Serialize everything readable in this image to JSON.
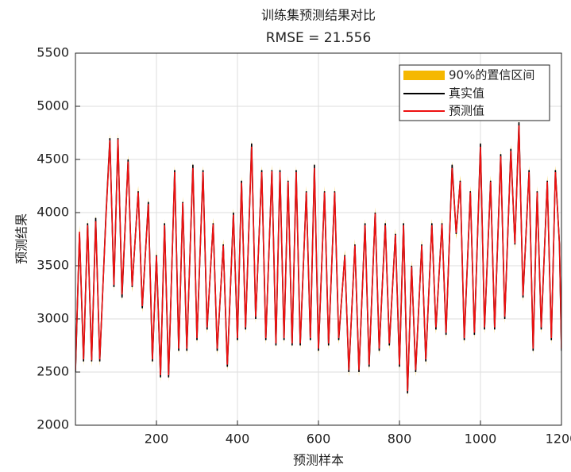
{
  "chart_data": {
    "type": "line",
    "title": "训练集预测结果对比",
    "subtitle": "RMSE = 21.556",
    "xlabel": "预测样本",
    "ylabel": "预测结果",
    "xlim": [
      0,
      1200
    ],
    "xticks": [
      200,
      400,
      600,
      800,
      1000,
      1200
    ],
    "ylim": [
      2000,
      5500
    ],
    "yticks": [
      2000,
      2500,
      3000,
      3500,
      4000,
      4500,
      5000,
      5500
    ],
    "grid": true,
    "legend": "northeast",
    "x": [
      0,
      10,
      20,
      30,
      40,
      50,
      60,
      75,
      85,
      95,
      105,
      115,
      130,
      140,
      155,
      165,
      180,
      190,
      200,
      210,
      220,
      230,
      245,
      255,
      265,
      275,
      290,
      300,
      315,
      325,
      340,
      350,
      365,
      375,
      390,
      400,
      410,
      420,
      435,
      445,
      460,
      470,
      485,
      495,
      505,
      515,
      525,
      535,
      545,
      555,
      570,
      580,
      590,
      600,
      615,
      625,
      640,
      650,
      665,
      675,
      690,
      700,
      715,
      725,
      740,
      750,
      765,
      775,
      790,
      800,
      810,
      820,
      830,
      840,
      855,
      865,
      880,
      890,
      905,
      915,
      930,
      940,
      950,
      960,
      975,
      985,
      1000,
      1010,
      1025,
      1035,
      1050,
      1060,
      1075,
      1085,
      1095,
      1105,
      1120,
      1130,
      1140,
      1150,
      1165,
      1175,
      1185,
      1195,
      1200
    ],
    "interval": {
      "name": "90%的置信区间",
      "color": "#f5b800",
      "halfwidth": 60
    },
    "series": [
      {
        "name": "真实值",
        "color": "#000000",
        "values": [
          2500,
          3800,
          2600,
          3900,
          2600,
          3950,
          2600,
          3950,
          4700,
          3300,
          4700,
          3200,
          4500,
          3300,
          4200,
          3100,
          4100,
          2600,
          3600,
          2450,
          3900,
          2450,
          4400,
          2700,
          4100,
          2700,
          4450,
          2800,
          4400,
          2900,
          3900,
          2700,
          3700,
          2550,
          4000,
          2800,
          4300,
          2900,
          4650,
          3000,
          4400,
          2800,
          4400,
          2750,
          4400,
          2800,
          4300,
          2750,
          4400,
          2750,
          4200,
          2800,
          4450,
          2700,
          4200,
          2750,
          4200,
          2800,
          3600,
          2500,
          3700,
          2500,
          3900,
          2550,
          4000,
          2700,
          3900,
          2750,
          3800,
          2550,
          3900,
          2300,
          3500,
          2500,
          3700,
          2600,
          3900,
          2900,
          3900,
          2850,
          4450,
          3800,
          4300,
          2800,
          4200,
          2850,
          4650,
          2900,
          4300,
          2900,
          4550,
          3000,
          4600,
          3700,
          4850,
          3200,
          4400,
          2700,
          4200,
          2900,
          4300,
          2800,
          4400,
          3700,
          2700
        ]
      },
      {
        "name": "预测值",
        "color": "#ee1111",
        "values": [
          2520,
          3820,
          2620,
          3880,
          2610,
          3920,
          2620,
          3930,
          4680,
          3320,
          4690,
          3230,
          4480,
          3310,
          4190,
          3120,
          4080,
          2620,
          3590,
          2470,
          3880,
          2470,
          4380,
          2720,
          4090,
          2720,
          4420,
          2820,
          4380,
          2920,
          3890,
          2720,
          3690,
          2570,
          3980,
          2820,
          4280,
          2920,
          4620,
          3020,
          4380,
          2820,
          4390,
          2770,
          4380,
          2820,
          4290,
          2770,
          4380,
          2770,
          4190,
          2820,
          4420,
          2720,
          4190,
          2770,
          4190,
          2820,
          3590,
          2520,
          3690,
          2520,
          3880,
          2570,
          3990,
          2720,
          3880,
          2770,
          3790,
          2570,
          3880,
          2320,
          3490,
          2520,
          3690,
          2620,
          3880,
          2920,
          3890,
          2870,
          4420,
          3810,
          4290,
          2820,
          4190,
          2870,
          4620,
          2920,
          4290,
          2920,
          4530,
          3020,
          4580,
          3710,
          4820,
          3220,
          4380,
          2720,
          4190,
          2920,
          4290,
          2820,
          4380,
          3710,
          2720
        ]
      }
    ]
  }
}
